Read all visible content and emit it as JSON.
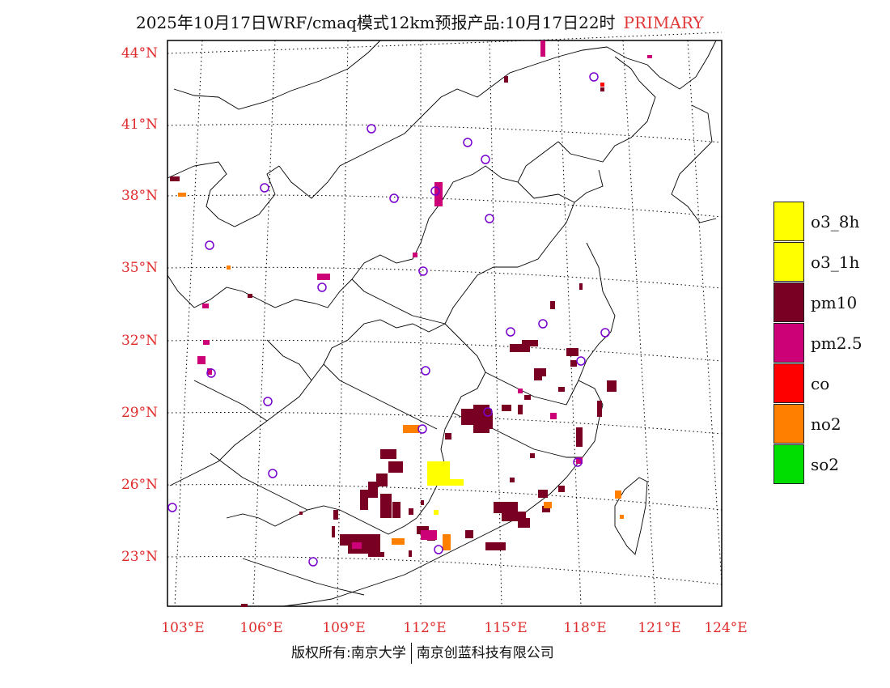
{
  "title": {
    "main": "2025年10月17日WRF/cmaq模式12km预报产品:10月17日22时",
    "tag": "PRIMARY"
  },
  "colors": {
    "label_red": "#e02b2b",
    "pm10": "#7a0023",
    "pm25": "#cc0077",
    "o3": "#ffff00",
    "no2": "#ff7f00",
    "co": "#ff0000",
    "so2": "#00dd00",
    "city_circle": "#7700cc"
  },
  "map": {
    "lat_labels": [
      "44°N",
      "41°N",
      "38°N",
      "35°N",
      "32°N",
      "29°N",
      "26°N",
      "23°N"
    ],
    "lon_labels": [
      "103°E",
      "106°E",
      "109°E",
      "112°E",
      "115°E",
      "118°E",
      "121°E",
      "124°E"
    ]
  },
  "legend": [
    {
      "label": "o3_8h",
      "color": "#ffff00"
    },
    {
      "label": "o3_1h",
      "color": "#ffff00"
    },
    {
      "label": "pm10",
      "color": "#7a0023"
    },
    {
      "label": "pm2.5",
      "color": "#cc0077"
    },
    {
      "label": "co",
      "color": "#ff0000"
    },
    {
      "label": "no2",
      "color": "#ff7f00"
    },
    {
      "label": "so2",
      "color": "#00dd00"
    }
  ],
  "footer": {
    "left": "版权所有:南京大学",
    "right": "南京创蓝科技有限公司"
  }
}
